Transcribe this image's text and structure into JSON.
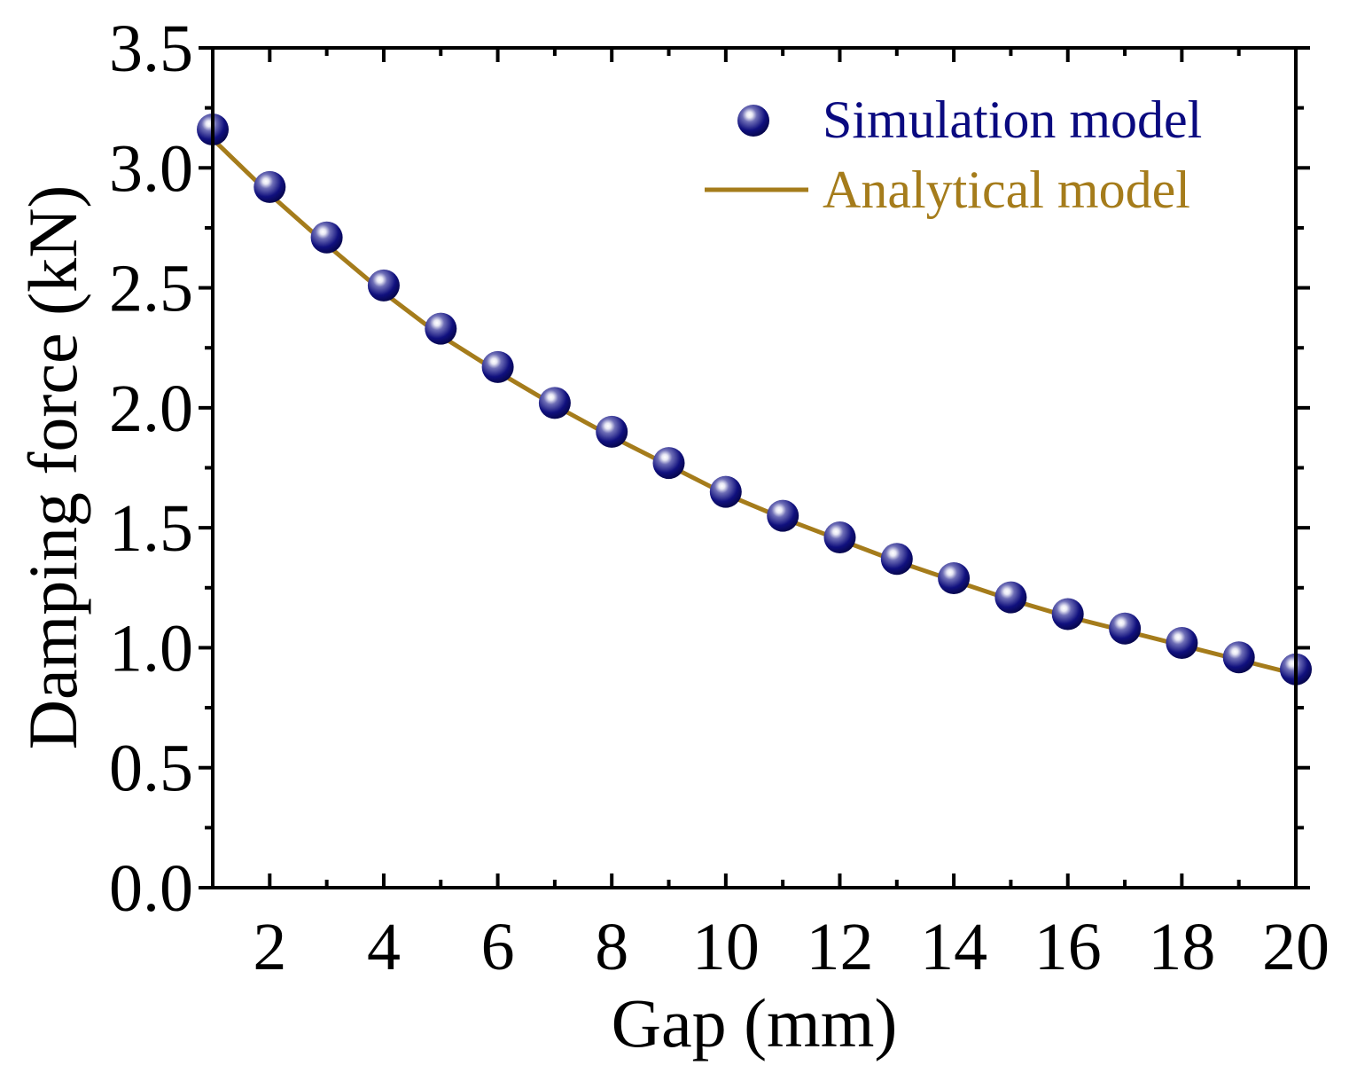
{
  "chart_data": {
    "type": "scatter",
    "title": "",
    "xlabel": "Gap (mm)",
    "ylabel": "Damping force (kN)",
    "xlim": [
      1,
      20
    ],
    "ylim": [
      0,
      3.5
    ],
    "x_ticks": [
      2,
      4,
      6,
      8,
      10,
      12,
      14,
      16,
      18,
      20
    ],
    "x_tick_labels": [
      "2",
      "4",
      "6",
      "8",
      "10",
      "12",
      "14",
      "16",
      "18",
      "20"
    ],
    "y_ticks": [
      0,
      0.5,
      1,
      1.5,
      2,
      2.5,
      3,
      3.5
    ],
    "y_tick_labels": [
      "0.0",
      "0.5",
      "1.0",
      "1.5",
      "2.0",
      "2.5",
      "3.0",
      "3.5"
    ],
    "grid": false,
    "legend_position": "top-right",
    "series": [
      {
        "name": "Simulation model",
        "kind": "scatter",
        "color": "#0a0a80",
        "x": [
          1,
          2,
          3,
          4,
          5,
          6,
          7,
          8,
          9,
          10,
          11,
          12,
          13,
          14,
          15,
          16,
          17,
          18,
          19,
          20
        ],
        "y": [
          3.16,
          2.92,
          2.71,
          2.51,
          2.33,
          2.17,
          2.02,
          1.9,
          1.77,
          1.65,
          1.55,
          1.46,
          1.37,
          1.29,
          1.21,
          1.14,
          1.08,
          1.02,
          0.96,
          0.91
        ]
      },
      {
        "name": "Analytical model",
        "kind": "line",
        "color": "#a57c1b",
        "x": [
          1,
          2,
          3,
          4,
          5,
          6,
          7,
          8,
          9,
          10,
          11,
          12,
          13,
          14,
          15,
          16,
          17,
          18,
          19,
          20
        ],
        "y": [
          3.12,
          2.89,
          2.68,
          2.48,
          2.3,
          2.15,
          2.01,
          1.88,
          1.76,
          1.64,
          1.54,
          1.45,
          1.36,
          1.28,
          1.2,
          1.13,
          1.07,
          1.01,
          0.95,
          0.89
        ]
      }
    ]
  }
}
